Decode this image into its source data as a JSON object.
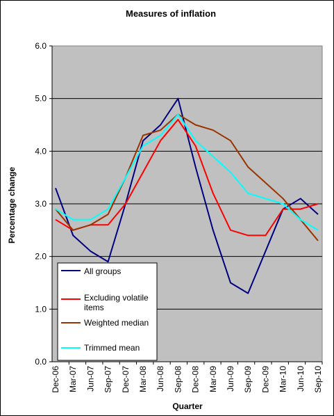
{
  "chart_data": {
    "type": "line",
    "title": "Measures of inflation",
    "xlabel": "Quarter",
    "ylabel": "Percentage change",
    "ylim": [
      0,
      6
    ],
    "yticks": [
      "0.0",
      "1.0",
      "2.0",
      "3.0",
      "4.0",
      "5.0",
      "6.0"
    ],
    "grid": true,
    "legend_position": "bottom-left",
    "plot_background": "#c0c0c0",
    "categories": [
      "Dec-06",
      "Mar-07",
      "Jun-07",
      "Sep-07",
      "Dec-07",
      "Mar-08",
      "Jun-08",
      "Sep-08",
      "Dec-08",
      "Mar-09",
      "Jun-09",
      "Sep-09",
      "Dec-09",
      "Mar-10",
      "Jun-10",
      "Sep-10"
    ],
    "series": [
      {
        "name": "All groups",
        "color": "#000080",
        "values": [
          3.3,
          2.4,
          2.1,
          1.9,
          3.0,
          4.2,
          4.5,
          5.0,
          3.7,
          2.5,
          1.5,
          1.3,
          2.1,
          2.9,
          3.1,
          2.8
        ]
      },
      {
        "name": "Excluding volatile items",
        "color": "#ff0000",
        "values": [
          2.7,
          2.5,
          2.6,
          2.6,
          3.0,
          3.6,
          4.2,
          4.6,
          4.1,
          3.2,
          2.5,
          2.4,
          2.4,
          2.9,
          2.9,
          3.0
        ]
      },
      {
        "name": "Weighted median",
        "color": "#993300",
        "values": [
          2.9,
          2.5,
          2.6,
          2.8,
          3.5,
          4.3,
          4.4,
          4.7,
          4.5,
          4.4,
          4.2,
          3.7,
          3.4,
          3.1,
          2.7,
          2.3
        ]
      },
      {
        "name": "Trimmed mean",
        "color": "#00ffff",
        "values": [
          2.9,
          2.7,
          2.7,
          2.9,
          3.5,
          4.1,
          4.3,
          4.7,
          4.2,
          3.9,
          3.6,
          3.2,
          3.1,
          3.0,
          2.7,
          2.5
        ]
      }
    ]
  }
}
